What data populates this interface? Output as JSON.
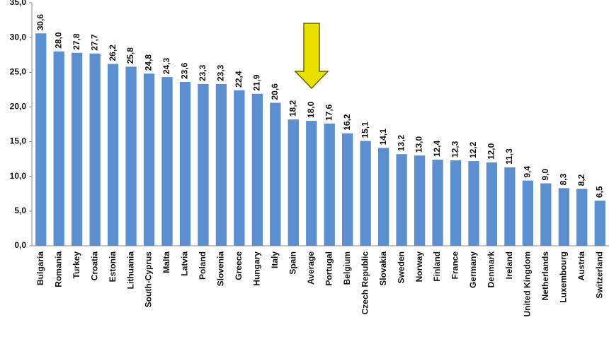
{
  "chart_data": {
    "type": "bar",
    "categories": [
      "Bulgaria",
      "Romania",
      "Turkey",
      "Croatia",
      "Estonia",
      "Lithuania",
      "South-Cyprus",
      "Malta",
      "Latvia",
      "Poland",
      "Slovenia",
      "Greece",
      "Hungary",
      "Italy",
      "Spain",
      "Average",
      "Portugal",
      "Belgium",
      "Czech Republic",
      "Slovakia",
      "Sweden",
      "Norway",
      "Finland",
      "France",
      "Germany",
      "Denmark",
      "Ireland",
      "United Kingdom",
      "Netherlands",
      "Luxembourg",
      "Austria",
      "Switzerland"
    ],
    "values": [
      30.6,
      28.0,
      27.8,
      27.7,
      26.2,
      25.8,
      24.8,
      24.3,
      23.6,
      23.3,
      23.3,
      22.4,
      21.9,
      20.6,
      18.2,
      18.0,
      17.6,
      16.2,
      15.1,
      14.1,
      13.2,
      13.0,
      12.4,
      12.3,
      12.2,
      12.0,
      11.3,
      9.4,
      9.0,
      8.3,
      8.2,
      6.5
    ],
    "value_labels": [
      "30,6",
      "28,0",
      "27,8",
      "27,7",
      "26,2",
      "25,8",
      "24,8",
      "24,3",
      "23,6",
      "23,3",
      "23,3",
      "22,4",
      "21,9",
      "20,6",
      "18,2",
      "18,0",
      "17,6",
      "16,2",
      "15,1",
      "14,1",
      "13,2",
      "13,0",
      "12,4",
      "12,3",
      "12,2",
      "12,0",
      "11,3",
      "9,4",
      "9,0",
      "8,3",
      "8,2",
      "6,5"
    ],
    "color": "#5b8fd0",
    "ylim": [
      0,
      35
    ],
    "yticks": [
      {
        "value": 0,
        "label": "0,0"
      },
      {
        "value": 5,
        "label": "5,0"
      },
      {
        "value": 10,
        "label": "10,0"
      },
      {
        "value": 15,
        "label": "15,0"
      },
      {
        "value": 20,
        "label": "20,0"
      },
      {
        "value": 25,
        "label": "25,0"
      },
      {
        "value": 30,
        "label": "30,0"
      },
      {
        "value": 35,
        "label": "35,0"
      }
    ],
    "grid": false
  }
}
